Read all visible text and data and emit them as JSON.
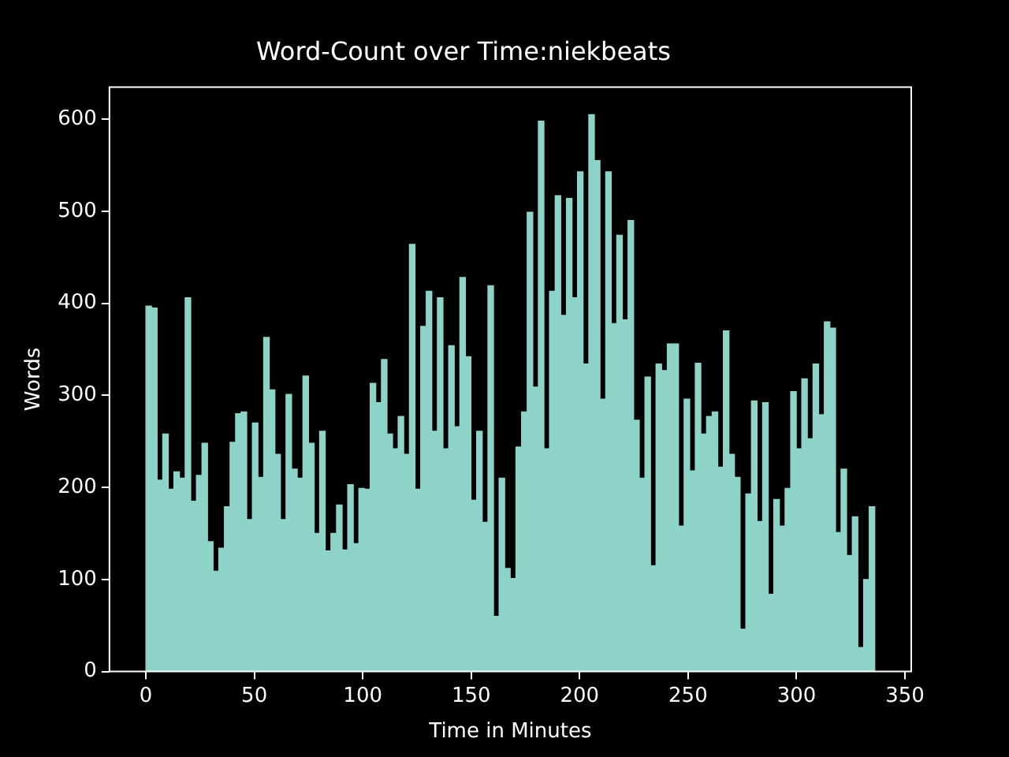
{
  "chart_data": {
    "type": "histogram",
    "title": "Word-Count over Time:niekbeats",
    "xlabel": "Time in Minutes",
    "ylabel": "Words",
    "color": "#8dd3c7",
    "bins": [
      0,
      2.6,
      5.2,
      7.8,
      10.3,
      12.9,
      15.5,
      18.1,
      20.7,
      23.3,
      25.9,
      28.4,
      31.0,
      33.6,
      36.2,
      38.8,
      41.4,
      43.9,
      46.5,
      49.1,
      51.7,
      54.3,
      56.9,
      59.5,
      62.0,
      64.6,
      67.2,
      69.8,
      72.4,
      75.0,
      77.6,
      80.1,
      82.7,
      85.3,
      87.9,
      90.5,
      93.1,
      95.6,
      98.2,
      100.8,
      103.4,
      106.0,
      108.6,
      111.2,
      113.7,
      116.3,
      118.9,
      121.5,
      124.1,
      126.7,
      129.3,
      131.8,
      134.4,
      137.0,
      139.6,
      142.2,
      144.8,
      147.3,
      149.9,
      152.5,
      155.1,
      157.7,
      160.3,
      162.9,
      165.4,
      168.0,
      170.6,
      173.2,
      175.8,
      178.4,
      181.0,
      183.5,
      186.1,
      188.7,
      191.3,
      193.9,
      196.5,
      199.0,
      201.6,
      204.2,
      206.8,
      209.4,
      212.0,
      214.6,
      217.1,
      219.7,
      222.3,
      224.9,
      227.5,
      230.1,
      232.7,
      235.2,
      237.8,
      240.4,
      243.0,
      245.6,
      248.2,
      250.7,
      253.3,
      255.9,
      258.5,
      261.1,
      263.7,
      266.3,
      268.8,
      271.4,
      274.0,
      276.6,
      279.2,
      281.8,
      284.4,
      286.9,
      289.5,
      292.1,
      294.7,
      297.3,
      299.9,
      302.4,
      305.0,
      307.6,
      310.2,
      312.8,
      315.4,
      318.0,
      320.5,
      323.1,
      325.7,
      328.3,
      330.9,
      333.5,
      336.1
    ],
    "values": [
      397,
      395,
      208,
      258,
      198,
      217,
      210,
      406,
      185,
      213,
      248,
      141,
      109,
      134,
      179,
      249,
      280,
      282,
      165,
      270,
      211,
      363,
      306,
      236,
      165,
      301,
      220,
      210,
      321,
      248,
      150,
      261,
      131,
      150,
      181,
      132,
      203,
      139,
      199,
      198,
      313,
      292,
      339,
      258,
      242,
      277,
      236,
      464,
      198,
      375,
      413,
      261,
      406,
      242,
      354,
      266,
      428,
      342,
      186,
      261,
      162,
      419,
      60,
      210,
      112,
      101,
      244,
      282,
      499,
      309,
      598,
      242,
      413,
      517,
      387,
      514,
      406,
      543,
      334,
      605,
      555,
      296,
      543,
      378,
      474,
      382,
      490,
      273,
      210,
      320,
      115,
      334,
      327,
      356,
      356,
      158,
      296,
      218,
      335,
      258,
      277,
      282,
      222,
      370,
      236,
      211,
      46,
      193,
      294,
      163,
      292,
      84,
      187,
      158,
      199,
      304,
      242,
      318,
      253,
      334,
      279,
      380,
      373,
      151,
      220,
      126,
      168,
      26,
      100,
      179
    ],
    "xlim": [
      -16.8,
      352.9
    ],
    "xticks": [
      0,
      50,
      100,
      150,
      200,
      250,
      300,
      350
    ],
    "ylim": [
      0,
      635
    ],
    "yticks": [
      0,
      100,
      200,
      300,
      400,
      500,
      600
    ],
    "grid": false,
    "legend": false
  }
}
